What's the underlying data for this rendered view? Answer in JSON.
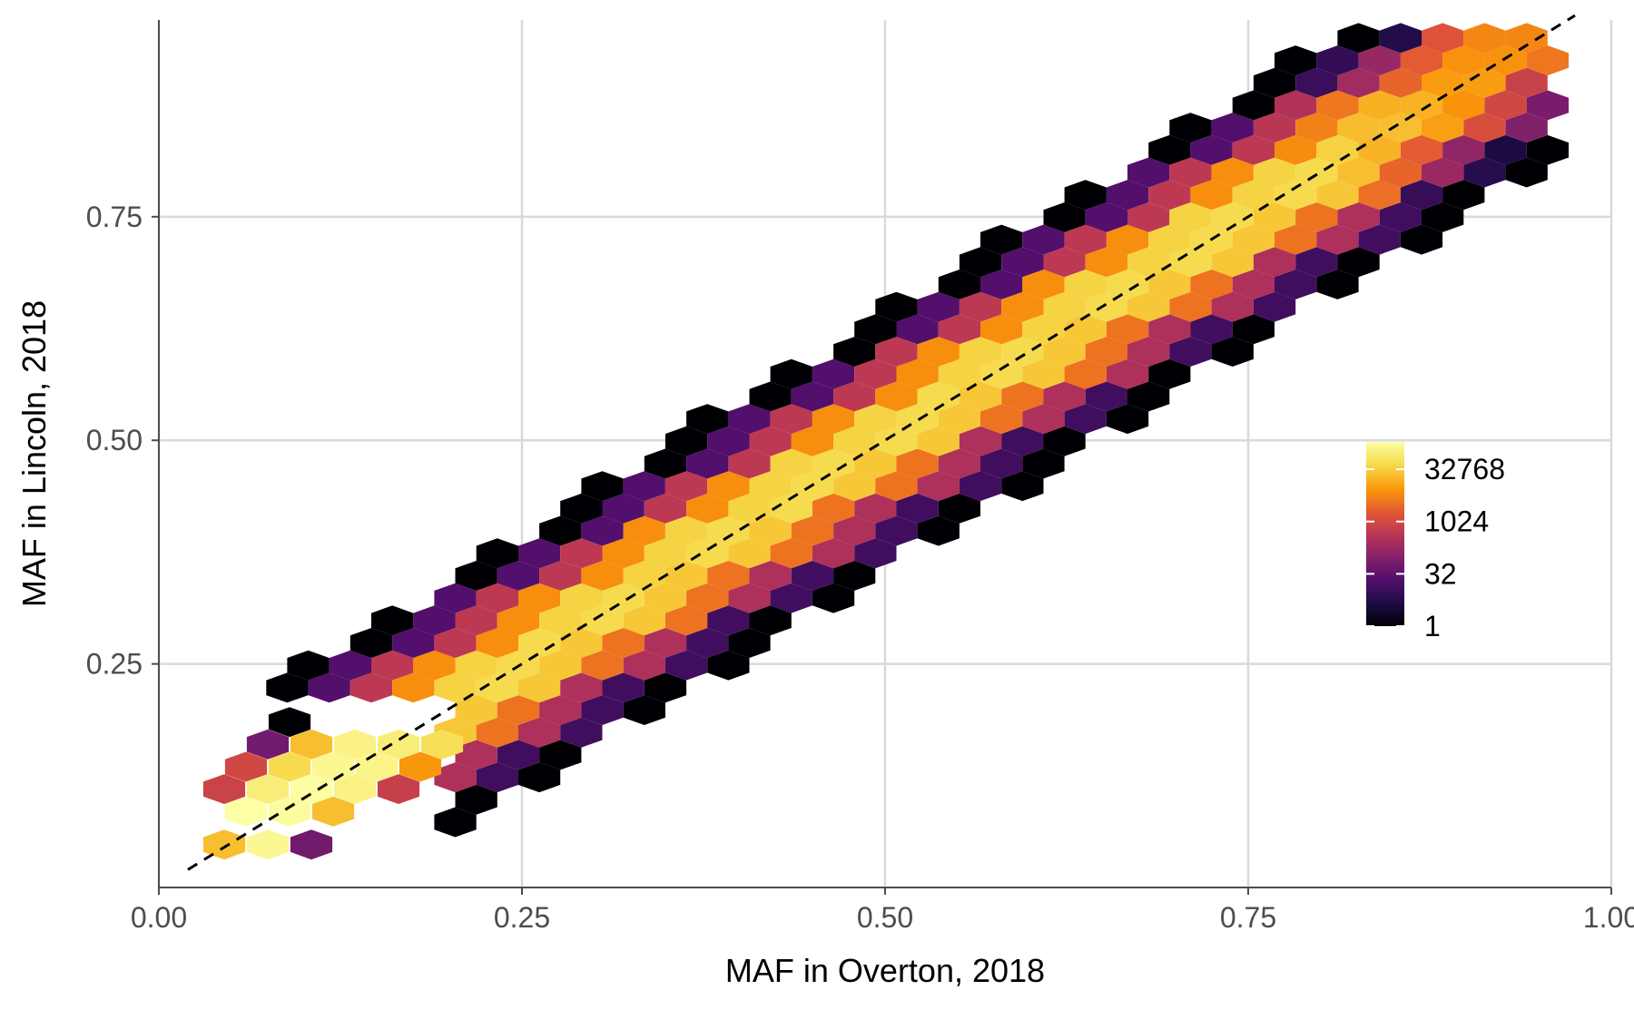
{
  "chart_data": {
    "type": "hexbin",
    "xlabel": "MAF in Overton, 2018",
    "ylabel": "MAF in Lincoln, 2018",
    "xlim": [
      0.0,
      1.0
    ],
    "ylim": [
      0.0,
      0.97
    ],
    "x_ticks": [
      0.0,
      0.25,
      0.5,
      0.75,
      1.0
    ],
    "x_tick_labels": [
      "0.00",
      "0.25",
      "0.50",
      "0.75",
      "1.00"
    ],
    "y_ticks": [
      0.25,
      0.5,
      0.75
    ],
    "y_tick_labels": [
      "0.25",
      "0.50",
      "0.75"
    ],
    "grid": true,
    "reference_line": {
      "style": "dashed",
      "color": "#000000",
      "from": [
        0.02,
        0.02
      ],
      "to": [
        0.975,
        0.975
      ]
    },
    "legend": {
      "placement": "right",
      "scale": "log2",
      "colormap": "inferno",
      "breaks": [
        1,
        32,
        1024,
        32768
      ],
      "break_labels": [
        "1",
        "32",
        "1024",
        "32768"
      ],
      "max": 200000
    },
    "hex_size": 0.0167,
    "diagonal_band": {
      "offsets": [
        -5,
        -4,
        -3,
        -2,
        -1,
        0,
        1,
        2,
        3,
        4,
        5
      ],
      "counts": [
        1,
        12,
        300,
        4000,
        30000,
        50000,
        40000,
        8000,
        500,
        20,
        1
      ]
    },
    "low_maf_counts": [
      {
        "x": 0.045,
        "y": 0.048,
        "count": 25000
      },
      {
        "x": 0.075,
        "y": 0.048,
        "count": 150000
      },
      {
        "x": 0.105,
        "y": 0.048,
        "count": 50
      },
      {
        "x": 0.06,
        "y": 0.085,
        "count": 200000
      },
      {
        "x": 0.09,
        "y": 0.085,
        "count": 180000
      },
      {
        "x": 0.12,
        "y": 0.085,
        "count": 25000
      },
      {
        "x": 0.045,
        "y": 0.11,
        "count": 800
      },
      {
        "x": 0.075,
        "y": 0.11,
        "count": 100000
      },
      {
        "x": 0.105,
        "y": 0.11,
        "count": 190000
      },
      {
        "x": 0.135,
        "y": 0.11,
        "count": 120000
      },
      {
        "x": 0.165,
        "y": 0.11,
        "count": 700
      },
      {
        "x": 0.06,
        "y": 0.135,
        "count": 1000
      },
      {
        "x": 0.09,
        "y": 0.135,
        "count": 50000
      },
      {
        "x": 0.12,
        "y": 0.135,
        "count": 150000
      },
      {
        "x": 0.15,
        "y": 0.135,
        "count": 130000
      },
      {
        "x": 0.18,
        "y": 0.135,
        "count": 10000
      },
      {
        "x": 0.075,
        "y": 0.16,
        "count": 50
      },
      {
        "x": 0.105,
        "y": 0.16,
        "count": 25000
      },
      {
        "x": 0.135,
        "y": 0.16,
        "count": 120000
      },
      {
        "x": 0.165,
        "y": 0.16,
        "count": 100000
      },
      {
        "x": 0.195,
        "y": 0.16,
        "count": 60000
      },
      {
        "x": 0.09,
        "y": 0.185,
        "count": 1
      }
    ]
  }
}
